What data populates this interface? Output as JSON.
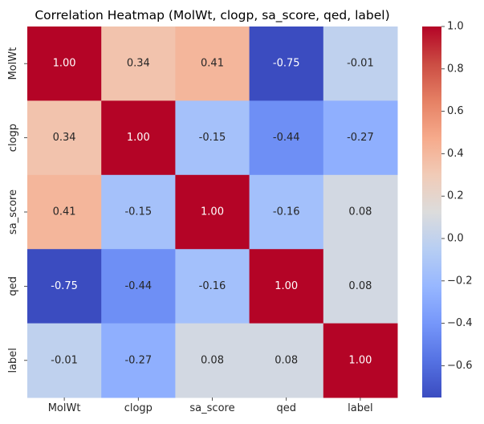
{
  "chart_data": {
    "type": "heatmap",
    "title": "Correlation Heatmap (MolWt, clogp, sa_score, qed, label)",
    "xlabel": "",
    "ylabel": "",
    "x_labels": [
      "MolWt",
      "clogp",
      "sa_score",
      "qed",
      "label"
    ],
    "y_labels": [
      "MolWt",
      "clogp",
      "sa_score",
      "qed",
      "label"
    ],
    "matrix": [
      [
        1.0,
        0.34,
        0.41,
        -0.75,
        -0.01
      ],
      [
        0.34,
        1.0,
        -0.15,
        -0.44,
        -0.27
      ],
      [
        0.41,
        -0.15,
        1.0,
        -0.16,
        0.08
      ],
      [
        -0.75,
        -0.44,
        -0.16,
        1.0,
        0.08
      ],
      [
        -0.01,
        -0.27,
        0.08,
        0.08,
        1.0
      ]
    ],
    "value_format": "0.00",
    "colormap": "coolwarm",
    "vmin": -0.75,
    "vmax": 1.0,
    "colorbar_ticks": [
      1.0,
      0.8,
      0.6,
      0.4,
      0.2,
      0.0,
      -0.2,
      -0.4,
      -0.6
    ],
    "colorbar_tick_labels": [
      "1.0",
      "0.8",
      "0.6",
      "0.4",
      "0.2",
      "0.0",
      "−0.2",
      "−0.4",
      "−0.6"
    ],
    "grid": false,
    "legend": "colorbar-right"
  }
}
